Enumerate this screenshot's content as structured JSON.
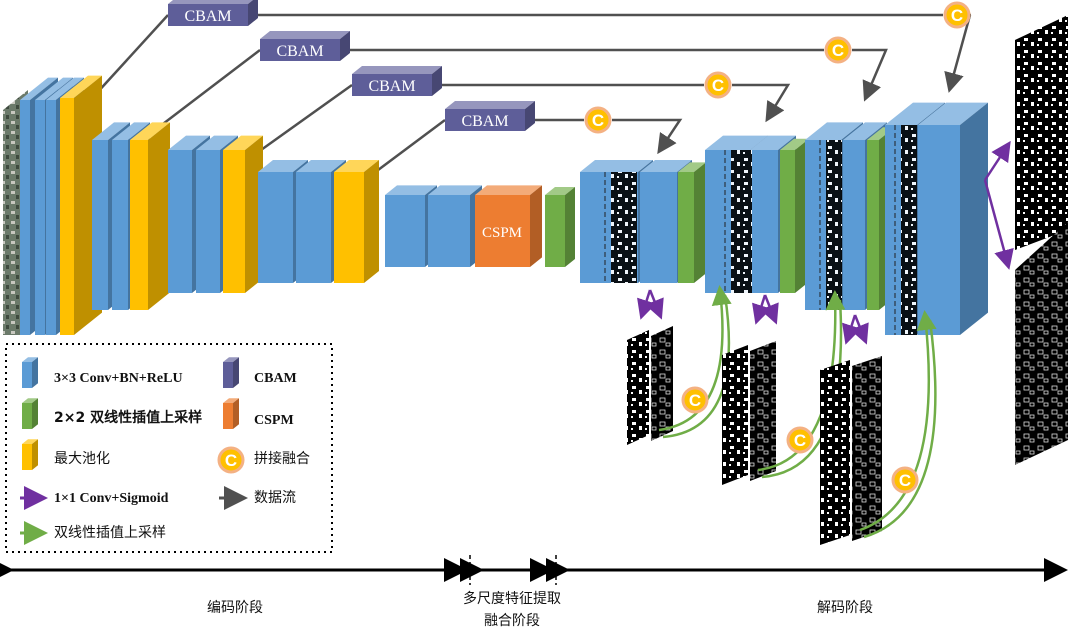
{
  "diagram": {
    "block_labels": {
      "cbam": "CBAM",
      "cspm": "CSPM",
      "concat": "C"
    },
    "legend": {
      "conv": "3×3 Conv+BN+ReLU",
      "upsample2x2": "2×2 双线性插值上采样",
      "maxpool": "最大池化",
      "conv1x1": "1×1 Conv+Sigmoid",
      "bilinear_upsample": "双线性插值上采样",
      "cbam": "CBAM",
      "cspm": "CSPM",
      "concat": "拼接融合",
      "dataflow": "数据流"
    },
    "stages": {
      "encoder": "编码阶段",
      "middle_line1": "多尺度特征提取",
      "middle_line2": "融合阶段",
      "decoder": "解码阶段"
    },
    "colors": {
      "conv": "#5b9bd5",
      "upsample": "#70ad47",
      "maxpool": "#ffc000",
      "cbam": "#5e5e99",
      "cspm": "#ed7d31",
      "concat": "#ffc000",
      "conv1x1_arrow": "#7030a0",
      "upsample_arrow": "#70ad47",
      "dataflow_arrow": "#505050"
    }
  }
}
